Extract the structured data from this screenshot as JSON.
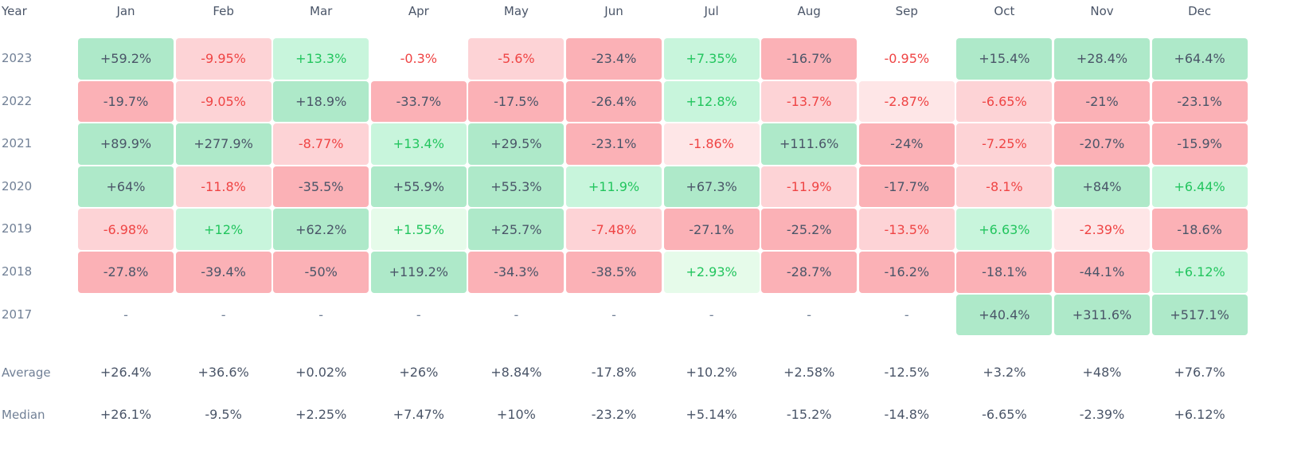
{
  "header": {
    "year_label": "Year"
  },
  "colors": {
    "pos_strong": "#aee9c9",
    "pos_mid": "#c8f5dc",
    "pos_light": "#e6fbea",
    "neg_strong": "#fbb1b6",
    "neg_mid": "#fdd3d6",
    "neg_light": "#fee6e7",
    "text_dark": "#4a5568",
    "text_green": "#22c55e",
    "text_red": "#ef4444"
  },
  "chart_data": {
    "type": "table",
    "months": [
      "Jan",
      "Feb",
      "Mar",
      "Apr",
      "May",
      "Jun",
      "Jul",
      "Aug",
      "Sep",
      "Oct",
      "Nov",
      "Dec"
    ],
    "rows": [
      {
        "year": "2023",
        "values": [
          "+59.2%",
          "-9.95%",
          "+13.3%",
          "-0.3%",
          "-5.6%",
          "-23.4%",
          "+7.35%",
          "-16.7%",
          "-0.95%",
          "+15.4%",
          "+28.4%",
          "+64.4%"
        ]
      },
      {
        "year": "2022",
        "values": [
          "-19.7%",
          "-9.05%",
          "+18.9%",
          "-33.7%",
          "-17.5%",
          "-26.4%",
          "+12.8%",
          "-13.7%",
          "-2.87%",
          "-6.65%",
          "-21%",
          "-23.1%"
        ]
      },
      {
        "year": "2021",
        "values": [
          "+89.9%",
          "+277.9%",
          "-8.77%",
          "+13.4%",
          "+29.5%",
          "-23.1%",
          "-1.86%",
          "+111.6%",
          "-24%",
          "-7.25%",
          "-20.7%",
          "-15.9%"
        ]
      },
      {
        "year": "2020",
        "values": [
          "+64%",
          "-11.8%",
          "-35.5%",
          "+55.9%",
          "+55.3%",
          "+11.9%",
          "+67.3%",
          "-11.9%",
          "-17.7%",
          "-8.1%",
          "+84%",
          "+6.44%"
        ]
      },
      {
        "year": "2019",
        "values": [
          "-6.98%",
          "+12%",
          "+62.2%",
          "+1.55%",
          "+25.7%",
          "-7.48%",
          "-27.1%",
          "-25.2%",
          "-13.5%",
          "+6.63%",
          "-2.39%",
          "-18.6%"
        ]
      },
      {
        "year": "2018",
        "values": [
          "-27.8%",
          "-39.4%",
          "-50%",
          "+119.2%",
          "-34.3%",
          "-38.5%",
          "+2.93%",
          "-28.7%",
          "-16.2%",
          "-18.1%",
          "-44.1%",
          "+6.12%"
        ]
      },
      {
        "year": "2017",
        "values": [
          "-",
          "-",
          "-",
          "-",
          "-",
          "-",
          "-",
          "-",
          "-",
          "+40.4%",
          "+311.6%",
          "+517.1%"
        ]
      }
    ],
    "summary": [
      {
        "label": "Average",
        "values": [
          "+26.4%",
          "+36.6%",
          "+0.02%",
          "+26%",
          "+8.84%",
          "-17.8%",
          "+10.2%",
          "+2.58%",
          "-12.5%",
          "+3.2%",
          "+48%",
          "+76.7%"
        ]
      },
      {
        "label": "Median",
        "values": [
          "+26.1%",
          "-9.5%",
          "+2.25%",
          "+7.47%",
          "+10%",
          "-23.2%",
          "+5.14%",
          "-15.2%",
          "-14.8%",
          "-6.65%",
          "-2.39%",
          "+6.12%"
        ]
      }
    ]
  }
}
